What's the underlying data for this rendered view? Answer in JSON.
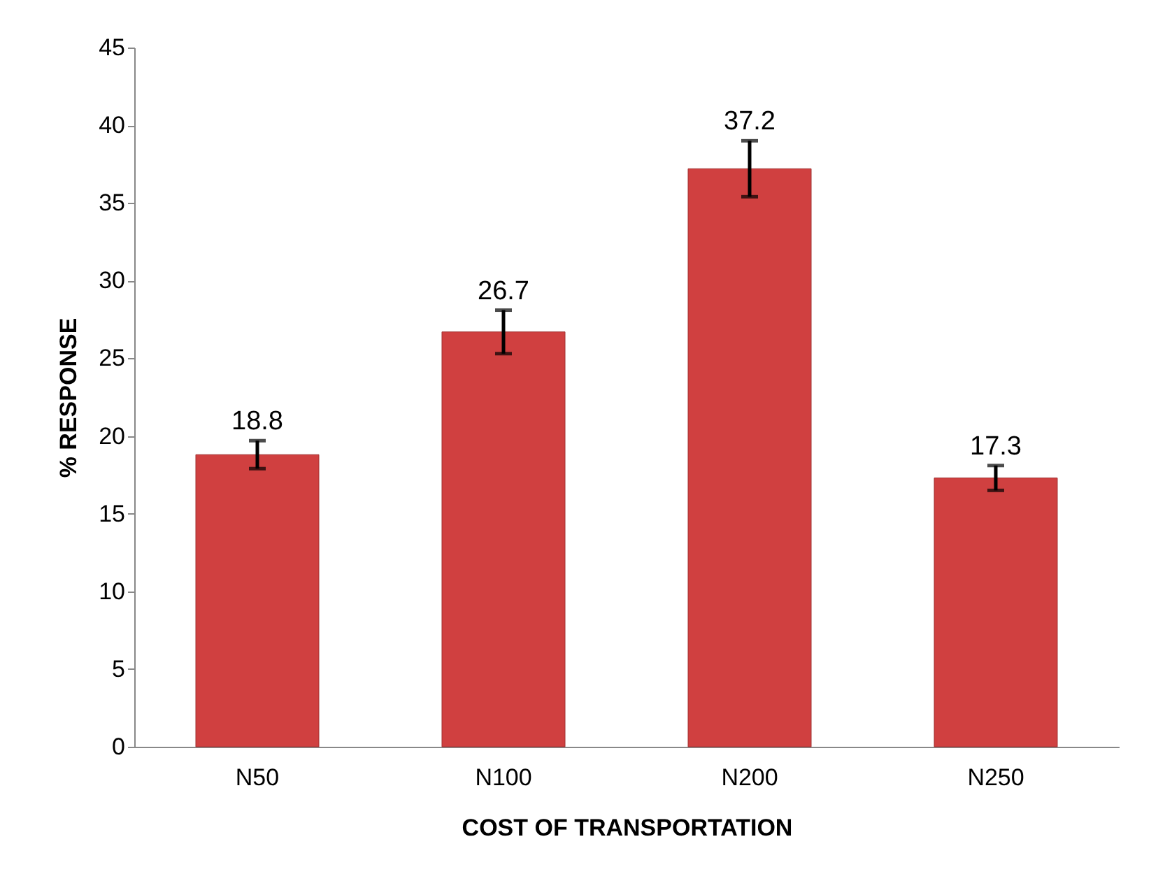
{
  "chart_data": {
    "type": "bar",
    "xlabel": "COST OF TRANSPORTATION",
    "ylabel": "% RESPONSE",
    "categories": [
      "N50",
      "N100",
      "N200",
      "N250"
    ],
    "values": [
      18.8,
      26.7,
      37.2,
      17.3
    ],
    "errors": [
      0.9,
      1.4,
      1.8,
      0.8
    ],
    "color": "#d04040",
    "ylim": [
      0,
      45
    ],
    "yticks": [
      0,
      5,
      10,
      15,
      20,
      25,
      30,
      35,
      40,
      45
    ],
    "data_labels": true,
    "grid": false
  }
}
